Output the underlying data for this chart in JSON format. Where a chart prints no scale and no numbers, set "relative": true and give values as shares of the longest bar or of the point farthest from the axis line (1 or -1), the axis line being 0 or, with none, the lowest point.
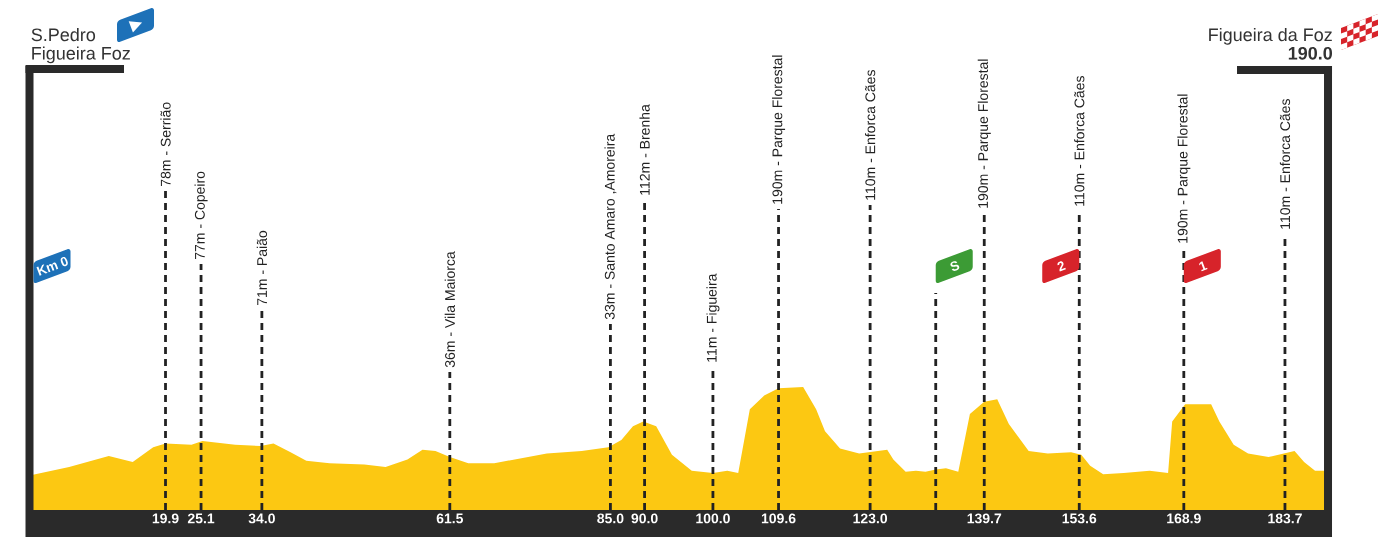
{
  "chart_data": {
    "type": "area",
    "relative": true,
    "color": "#fcc812",
    "x": [
      0,
      5.8,
      11.6,
      15.1,
      18.1,
      19.9,
      23.7,
      25.3,
      30.1,
      33.8,
      35.7,
      38.2,
      40.5,
      43.9,
      49.0,
      52.1,
      55.3,
      57.5,
      59.4,
      61.5,
      64.2,
      68.0,
      75.7,
      80.8,
      84.7,
      86.6,
      88.3,
      89.8,
      91.7,
      94.0,
      96.9,
      100,
      102.1,
      103.7,
      105.4,
      107.5,
      109.6,
      113.2,
      115.1,
      116.4,
      118.6,
      121.4,
      125.5,
      126.4,
      128.2,
      129.7,
      131.1,
      132.6,
      134.1,
      135.9,
      137.6,
      139.7,
      141.6,
      143.3,
      146.2,
      149.0,
      152.4,
      153.9,
      155.2,
      157.1,
      160.1,
      163.9,
      166.6,
      167.2,
      169.1,
      172.9,
      174.1,
      176.2,
      178.3,
      181.3,
      185.1,
      186.5,
      188.1,
      190
    ],
    "values": [
      0.28,
      0.35,
      0.44,
      0.39,
      0.51,
      0.54,
      0.53,
      0.56,
      0.53,
      0.52,
      0.54,
      0.47,
      0.4,
      0.38,
      0.37,
      0.35,
      0.41,
      0.49,
      0.48,
      0.43,
      0.38,
      0.38,
      0.46,
      0.48,
      0.51,
      0.57,
      0.68,
      0.72,
      0.68,
      0.45,
      0.32,
      0.3,
      0.32,
      0.3,
      0.82,
      0.93,
      0.99,
      1.0,
      0.82,
      0.64,
      0.5,
      0.46,
      0.49,
      0.41,
      0.31,
      0.32,
      0.31,
      0.33,
      0.34,
      0.31,
      0.78,
      0.88,
      0.9,
      0.7,
      0.48,
      0.46,
      0.47,
      0.45,
      0.36,
      0.29,
      0.3,
      0.32,
      0.3,
      0.72,
      0.86,
      0.86,
      0.72,
      0.53,
      0.46,
      0.43,
      0.48,
      0.39,
      0.32,
      0.32
    ],
    "xlim": [
      0,
      190
    ],
    "xticks": [
      19.9,
      25.1,
      {
        "value": 34,
        "label": "34.0"
      },
      61.5,
      {
        "value": 85,
        "label": "85.0"
      },
      {
        "value": 90,
        "label": "90.0"
      },
      {
        "value": 100,
        "label": "100.0"
      },
      109.6,
      {
        "value": 123,
        "label": "123.0"
      },
      139.7,
      153.6,
      168.9,
      183.7
    ],
    "tick_labels": "x",
    "ref_lines": [
      {
        "axis": "x",
        "value": 19.9,
        "label": "78m - Serrião",
        "color": "#222222",
        "line_style": "dashed"
      },
      {
        "axis": "x",
        "value": 25.1,
        "label": "77m - Copeiro",
        "color": "#222222",
        "line_style": "dashed"
      },
      {
        "axis": "x",
        "value": 34,
        "label": "71m - Paião",
        "color": "#222222",
        "line_style": "dashed"
      },
      {
        "axis": "x",
        "value": 61.5,
        "label": "36m - Vila Maiorca",
        "color": "#222222",
        "line_style": "dashed"
      },
      {
        "axis": "x",
        "value": 85,
        "label": "33m - Santo Amaro ,Amoreira",
        "color": "#222222",
        "line_style": "dashed"
      },
      {
        "axis": "x",
        "value": 90,
        "label": "112m - Brenha",
        "color": "#222222",
        "line_style": "dashed"
      },
      {
        "axis": "x",
        "value": 100,
        "label": "11m - Figueira",
        "color": "#222222",
        "line_style": "dashed"
      },
      {
        "axis": "x",
        "value": 109.6,
        "label": "190m - Parque Florestal",
        "color": "#222222",
        "line_style": "dashed"
      },
      {
        "axis": "x",
        "value": 123,
        "label": "110m - Enforca Cães",
        "color": "#222222",
        "line_style": "dashed"
      },
      {
        "axis": "x",
        "value": 132.6,
        "color": "#222222",
        "line_style": "dashed"
      },
      {
        "axis": "x",
        "value": 139.7,
        "label": "190m - Parque Florestal",
        "color": "#222222",
        "line_style": "dashed"
      },
      {
        "axis": "x",
        "value": 153.6,
        "label": "110m - Enforca Cães",
        "color": "#222222",
        "line_style": "dashed"
      },
      {
        "axis": "x",
        "value": 168.9,
        "label": "190m - Parque Florestal",
        "color": "#222222",
        "line_style": "dashed"
      },
      {
        "axis": "x",
        "value": 183.7,
        "label": "110m - Enforca Cães",
        "color": "#222222",
        "line_style": "dashed"
      }
    ],
    "annotations": [
      "S.Pedro",
      "Figueira Foz",
      "Figueira da Foz",
      "190.0",
      "Km 0",
      "S",
      "2",
      "1"
    ]
  }
}
